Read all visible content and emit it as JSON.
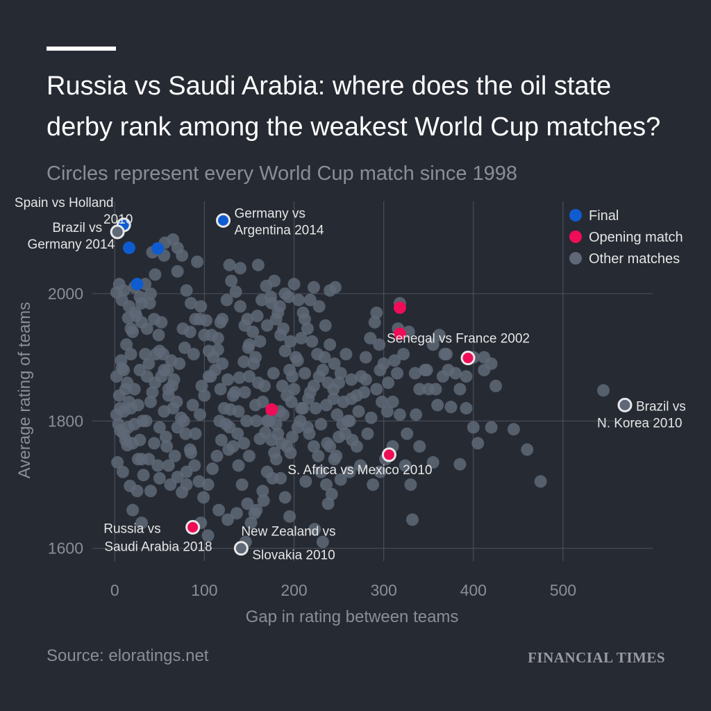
{
  "title_lines": [
    "Russia vs Saudi Arabia: where does the oil state",
    "derby rank among the weakest World Cup matches?"
  ],
  "subtitle": "Circles represent every World Cup match since 1998",
  "source": "Source: eloratings.net",
  "brand": "FINANCIAL TIMES",
  "colors": {
    "background": "#262a33",
    "final": "#0f5cd1",
    "opening": "#ee0d56",
    "other": "#5f6877",
    "highlight_stroke": "#e8e8e8",
    "grid": "#4a4f59"
  },
  "legend": [
    {
      "key": "final",
      "label": "Final"
    },
    {
      "key": "opening",
      "label": "Opening match"
    },
    {
      "key": "other",
      "label": "Other matches"
    }
  ],
  "chart_data": {
    "type": "scatter",
    "xlabel": "Gap in rating between teams",
    "ylabel": "Average rating of teams",
    "xlim": [
      -25,
      600
    ],
    "ylim": [
      1580,
      2145
    ],
    "xticks": [
      0,
      100,
      200,
      300,
      400,
      500
    ],
    "yticks": [
      1600,
      1800,
      2000
    ],
    "grid": true,
    "legend_position": "top-right",
    "highlighted": [
      {
        "label_lines": [
          "Spain vs Holland",
          "2010"
        ],
        "x": 10,
        "y": 2108,
        "category": "final"
      },
      {
        "label_lines": [
          "Germany vs",
          "Argentina 2014"
        ],
        "x": 121,
        "y": 2115,
        "category": "final"
      },
      {
        "label_lines": [
          "Brazil vs",
          "Germany 2014"
        ],
        "x": 3,
        "y": 2097,
        "category": "other"
      },
      {
        "label_lines": [
          "Senegal vs France 2002"
        ],
        "x": 394,
        "y": 1899,
        "category": "opening"
      },
      {
        "label_lines": [
          "Brazil vs",
          "N. Korea 2010"
        ],
        "x": 569,
        "y": 1825,
        "category": "other"
      },
      {
        "label_lines": [
          "S. Africa vs Mexico 2010"
        ],
        "x": 306,
        "y": 1747,
        "category": "opening"
      },
      {
        "label_lines": [
          "Russia vs",
          "Saudi Arabia 2018"
        ],
        "x": 87,
        "y": 1633,
        "category": "opening"
      },
      {
        "label_lines": [
          "New Zealand vs",
          "Slovakia 2010"
        ],
        "x": 141,
        "y": 1600,
        "category": "other"
      }
    ],
    "finals": [
      [
        16,
        2072
      ],
      [
        48,
        2071
      ],
      [
        25,
        2015
      ]
    ],
    "openings": [
      [
        318,
        1978
      ],
      [
        318,
        1937
      ],
      [
        175,
        1818
      ]
    ],
    "others": [
      [
        5,
        2015
      ],
      [
        10,
        2005
      ],
      [
        15,
        1962
      ],
      [
        20,
        1940
      ],
      [
        8,
        1883
      ],
      [
        12,
        1850
      ],
      [
        18,
        1820
      ],
      [
        22,
        1795
      ],
      [
        6,
        1785
      ],
      [
        14,
        1762
      ],
      [
        3,
        1735
      ],
      [
        9,
        1720
      ],
      [
        17,
        1698
      ],
      [
        25,
        1690
      ],
      [
        30,
        1740
      ],
      [
        28,
        1770
      ],
      [
        35,
        1800
      ],
      [
        40,
        1830
      ],
      [
        45,
        1860
      ],
      [
        38,
        1890
      ],
      [
        50,
        1910
      ],
      [
        55,
        1880
      ],
      [
        60,
        1850
      ],
      [
        65,
        1820
      ],
      [
        70,
        1790
      ],
      [
        58,
        1760
      ],
      [
        48,
        1730
      ],
      [
        62,
        1700
      ],
      [
        75,
        1688
      ],
      [
        80,
        1720
      ],
      [
        85,
        1750
      ],
      [
        90,
        1780
      ],
      [
        95,
        1810
      ],
      [
        100,
        1840
      ],
      [
        105,
        1870
      ],
      [
        110,
        1900
      ],
      [
        115,
        1930
      ],
      [
        120,
        1960
      ],
      [
        125,
        1990
      ],
      [
        130,
        2020
      ],
      [
        135,
        2003
      ],
      [
        140,
        1980
      ],
      [
        145,
        1950
      ],
      [
        150,
        1920
      ],
      [
        155,
        1890
      ],
      [
        160,
        1860
      ],
      [
        165,
        1830
      ],
      [
        170,
        1800
      ],
      [
        175,
        1770
      ],
      [
        180,
        1740
      ],
      [
        185,
        1710
      ],
      [
        190,
        1680
      ],
      [
        195,
        1650
      ],
      [
        30,
        1985
      ],
      [
        40,
        2000
      ],
      [
        45,
        2030
      ],
      [
        55,
        2060
      ],
      [
        65,
        2085
      ],
      [
        70,
        2072
      ],
      [
        75,
        2060
      ],
      [
        80,
        2005
      ],
      [
        85,
        1985
      ],
      [
        95,
        1960
      ],
      [
        100,
        1935
      ],
      [
        105,
        1910
      ],
      [
        112,
        1880
      ],
      [
        118,
        1850
      ],
      [
        122,
        1820
      ],
      [
        128,
        1790
      ],
      [
        132,
        1760
      ],
      [
        138,
        1730
      ],
      [
        142,
        1700
      ],
      [
        148,
        1670
      ],
      [
        152,
        1640
      ],
      [
        158,
        1660
      ],
      [
        165,
        1690
      ],
      [
        170,
        1720
      ],
      [
        178,
        1750
      ],
      [
        182,
        1780
      ],
      [
        188,
        1810
      ],
      [
        192,
        1840
      ],
      [
        198,
        1870
      ],
      [
        202,
        1900
      ],
      [
        208,
        1930
      ],
      [
        212,
        1960
      ],
      [
        218,
        1990
      ],
      [
        222,
        2010
      ],
      [
        228,
        1980
      ],
      [
        235,
        1950
      ],
      [
        240,
        1920
      ],
      [
        245,
        1890
      ],
      [
        250,
        1860
      ],
      [
        255,
        1830
      ],
      [
        260,
        1800
      ],
      [
        265,
        1770
      ],
      [
        270,
        1840
      ],
      [
        275,
        1870
      ],
      [
        280,
        1900
      ],
      [
        285,
        1930
      ],
      [
        290,
        1955
      ],
      [
        295,
        1920
      ],
      [
        300,
        1890
      ],
      [
        305,
        1860
      ],
      [
        310,
        1830
      ],
      [
        315,
        1875
      ],
      [
        322,
        1905
      ],
      [
        328,
        1940
      ],
      [
        335,
        1875
      ],
      [
        340,
        1850
      ],
      [
        348,
        1880
      ],
      [
        355,
        1920
      ],
      [
        362,
        1935
      ],
      [
        368,
        1905
      ],
      [
        372,
        1880
      ],
      [
        380,
        1875
      ],
      [
        385,
        1850
      ],
      [
        392,
        1820
      ],
      [
        400,
        1790
      ],
      [
        405,
        1765
      ],
      [
        412,
        1900
      ],
      [
        420,
        1890
      ],
      [
        425,
        1855
      ],
      [
        360,
        1825
      ],
      [
        375,
        1822
      ],
      [
        340,
        1760
      ],
      [
        355,
        1735
      ],
      [
        330,
        1700
      ],
      [
        332,
        1645
      ],
      [
        326,
        1780
      ],
      [
        318,
        1810
      ],
      [
        310,
        1760
      ],
      [
        296,
        1720
      ],
      [
        282,
        1780
      ],
      [
        270,
        1760
      ],
      [
        262,
        1800
      ],
      [
        250,
        1775
      ],
      [
        240,
        1760
      ],
      [
        236,
        1700
      ],
      [
        242,
        1685
      ],
      [
        238,
        1670
      ],
      [
        245,
        1740
      ],
      [
        230,
        1720
      ],
      [
        222,
        1760
      ],
      [
        215,
        1790
      ],
      [
        208,
        1820
      ],
      [
        200,
        1850
      ],
      [
        195,
        1880
      ],
      [
        190,
        1910
      ],
      [
        185,
        1935
      ],
      [
        180,
        1960
      ],
      [
        175,
        1985
      ],
      [
        170,
        1950
      ],
      [
        162,
        1925
      ],
      [
        157,
        1900
      ],
      [
        150,
        1870
      ],
      [
        145,
        1845
      ],
      [
        138,
        1815
      ],
      [
        132,
        1840
      ],
      [
        126,
        1865
      ],
      [
        120,
        1890
      ],
      [
        115,
        1912
      ],
      [
        108,
        1935
      ],
      [
        102,
        1958
      ],
      [
        96,
        1980
      ],
      [
        90,
        1960
      ],
      [
        84,
        1940
      ],
      [
        78,
        1915
      ],
      [
        72,
        1890
      ],
      [
        66,
        1865
      ],
      [
        60,
        1840
      ],
      [
        55,
        1815
      ],
      [
        50,
        1790
      ],
      [
        44,
        1765
      ],
      [
        38,
        1740
      ],
      [
        32,
        1715
      ],
      [
        26,
        1740
      ],
      [
        20,
        1765
      ],
      [
        15,
        1790
      ],
      [
        10,
        1815
      ],
      [
        5,
        1840
      ],
      [
        2,
        1870
      ],
      [
        7,
        1895
      ],
      [
        13,
        1920
      ],
      [
        18,
        1945
      ],
      [
        23,
        1970
      ],
      [
        28,
        1995
      ],
      [
        34,
        2015
      ],
      [
        39,
        1985
      ],
      [
        44,
        1960
      ],
      [
        49,
        1935
      ],
      [
        54,
        1905
      ],
      [
        59,
        1880
      ],
      [
        64,
        1855
      ],
      [
        69,
        1830
      ],
      [
        74,
        1805
      ],
      [
        79,
        1780
      ],
      [
        84,
        1755
      ],
      [
        89,
        1730
      ],
      [
        94,
        1705
      ],
      [
        99,
        1680
      ],
      [
        104,
        1700
      ],
      [
        109,
        1725
      ],
      [
        114,
        1745
      ],
      [
        119,
        1770
      ],
      [
        124,
        1795
      ],
      [
        129,
        1818
      ],
      [
        134,
        1845
      ],
      [
        139,
        1868
      ],
      [
        144,
        1893
      ],
      [
        149,
        1915
      ],
      [
        154,
        1940
      ],
      [
        159,
        1965
      ],
      [
        164,
        1990
      ],
      [
        169,
        2012
      ],
      [
        174,
        1995
      ],
      [
        182,
        1970
      ],
      [
        188,
        1945
      ],
      [
        196,
        1925
      ],
      [
        204,
        1895
      ],
      [
        212,
        1875
      ],
      [
        218,
        1845
      ],
      [
        224,
        1820
      ],
      [
        230,
        1795
      ],
      [
        236,
        1825
      ],
      [
        244,
        1850
      ],
      [
        252,
        1875
      ],
      [
        258,
        1905
      ],
      [
        264,
        1865
      ],
      [
        272,
        1815
      ],
      [
        278,
        1845
      ],
      [
        286,
        1805
      ],
      [
        292,
        1850
      ],
      [
        298,
        1830
      ],
      [
        304,
        1815
      ],
      [
        312,
        1895
      ],
      [
        420,
        1790
      ],
      [
        445,
        1787
      ],
      [
        460,
        1755
      ],
      [
        475,
        1705
      ],
      [
        545,
        1848
      ],
      [
        385,
        1732
      ],
      [
        10,
        1780
      ],
      [
        4,
        1795
      ],
      [
        16,
        1830
      ],
      [
        12,
        1770
      ],
      [
        22,
        1850
      ],
      [
        28,
        1880
      ],
      [
        34,
        1905
      ],
      [
        42,
        1845
      ],
      [
        52,
        1870
      ],
      [
        63,
        1895
      ],
      [
        46,
        1905
      ],
      [
        36,
        1870
      ],
      [
        26,
        1825
      ],
      [
        31,
        1800
      ],
      [
        57,
        1775
      ],
      [
        67,
        1745
      ],
      [
        77,
        1800
      ],
      [
        87,
        1825
      ],
      [
        97,
        1855
      ],
      [
        107,
        1870
      ],
      [
        117,
        1800
      ],
      [
        127,
        1755
      ],
      [
        137,
        1780
      ],
      [
        147,
        1800
      ],
      [
        157,
        1825
      ],
      [
        167,
        1855
      ],
      [
        177,
        1875
      ],
      [
        187,
        1855
      ],
      [
        197,
        1830
      ],
      [
        207,
        1800
      ],
      [
        217,
        1780
      ],
      [
        227,
        1745
      ],
      [
        237,
        1765
      ],
      [
        247,
        1745
      ],
      [
        257,
        1780
      ],
      [
        213,
        1705
      ],
      [
        223,
        1630
      ],
      [
        232,
        1610
      ],
      [
        196,
        1750
      ],
      [
        186,
        1765
      ],
      [
        176,
        1710
      ],
      [
        166,
        1675
      ],
      [
        156,
        1655
      ],
      [
        146,
        1610
      ],
      [
        136,
        1655
      ],
      [
        126,
        1645
      ],
      [
        116,
        1660
      ],
      [
        104,
        1620
      ],
      [
        96,
        1640
      ],
      [
        80,
        1700
      ],
      [
        70,
        1712
      ],
      [
        60,
        1730
      ],
      [
        50,
        1710
      ],
      [
        40,
        1690
      ],
      [
        30,
        1640
      ],
      [
        20,
        1660
      ],
      [
        140,
        2040
      ],
      [
        160,
        2045
      ],
      [
        128,
        2045
      ],
      [
        92,
        2050
      ],
      [
        56,
        2080
      ],
      [
        42,
        2065
      ],
      [
        70,
        2035
      ],
      [
        52,
        1955
      ],
      [
        76,
        1945
      ],
      [
        88,
        1905
      ],
      [
        118,
        1955
      ],
      [
        148,
        1960
      ],
      [
        194,
        1995
      ],
      [
        200,
        2015
      ],
      [
        205,
        1990
      ],
      [
        210,
        1970
      ],
      [
        215,
        1945
      ],
      [
        220,
        1925
      ],
      [
        226,
        1905
      ],
      [
        232,
        1880
      ],
      [
        238,
        1860
      ],
      [
        244,
        1835
      ],
      [
        248,
        1810
      ],
      [
        254,
        1795
      ],
      [
        264,
        1835
      ],
      [
        280,
        1865
      ],
      [
        296,
        1880
      ],
      [
        318,
        1985
      ],
      [
        316,
        1945
      ],
      [
        292,
        1970
      ],
      [
        346,
        1880
      ],
      [
        358,
        1850
      ],
      [
        336,
        1810
      ],
      [
        324,
        1730
      ],
      [
        302,
        1740
      ],
      [
        288,
        1700
      ],
      [
        274,
        1730
      ],
      [
        262,
        1720
      ],
      [
        252,
        1708
      ],
      [
        350,
        1850
      ],
      [
        366,
        1870
      ],
      [
        392,
        1870
      ],
      [
        370,
        1905
      ],
      [
        400,
        1900
      ],
      [
        412,
        1880
      ],
      [
        172,
        1800
      ],
      [
        176,
        1812
      ],
      [
        180,
        1795
      ],
      [
        184,
        1815
      ],
      [
        168,
        1782
      ],
      [
        162,
        1772
      ],
      [
        158,
        1800
      ],
      [
        150,
        1745
      ],
      [
        144,
        1765
      ],
      [
        192,
        1760
      ],
      [
        198,
        1775
      ],
      [
        204,
        1790
      ],
      [
        210,
        1820
      ],
      [
        216,
        1835
      ],
      [
        222,
        1855
      ],
      [
        228,
        1870
      ],
      [
        234,
        1900
      ],
      [
        240,
        2005
      ],
      [
        246,
        2010
      ],
      [
        190,
        2000
      ],
      [
        184,
        1980
      ],
      [
        178,
        2020
      ],
      [
        22,
        2010
      ],
      [
        2,
        2002
      ],
      [
        8,
        1990
      ],
      [
        16,
        1980
      ],
      [
        24,
        1965
      ],
      [
        30,
        1955
      ],
      [
        36,
        1945
      ],
      [
        18,
        1905
      ],
      [
        10,
        1880
      ],
      [
        14,
        1860
      ],
      [
        6,
        1820
      ],
      [
        2,
        1810
      ]
    ]
  }
}
